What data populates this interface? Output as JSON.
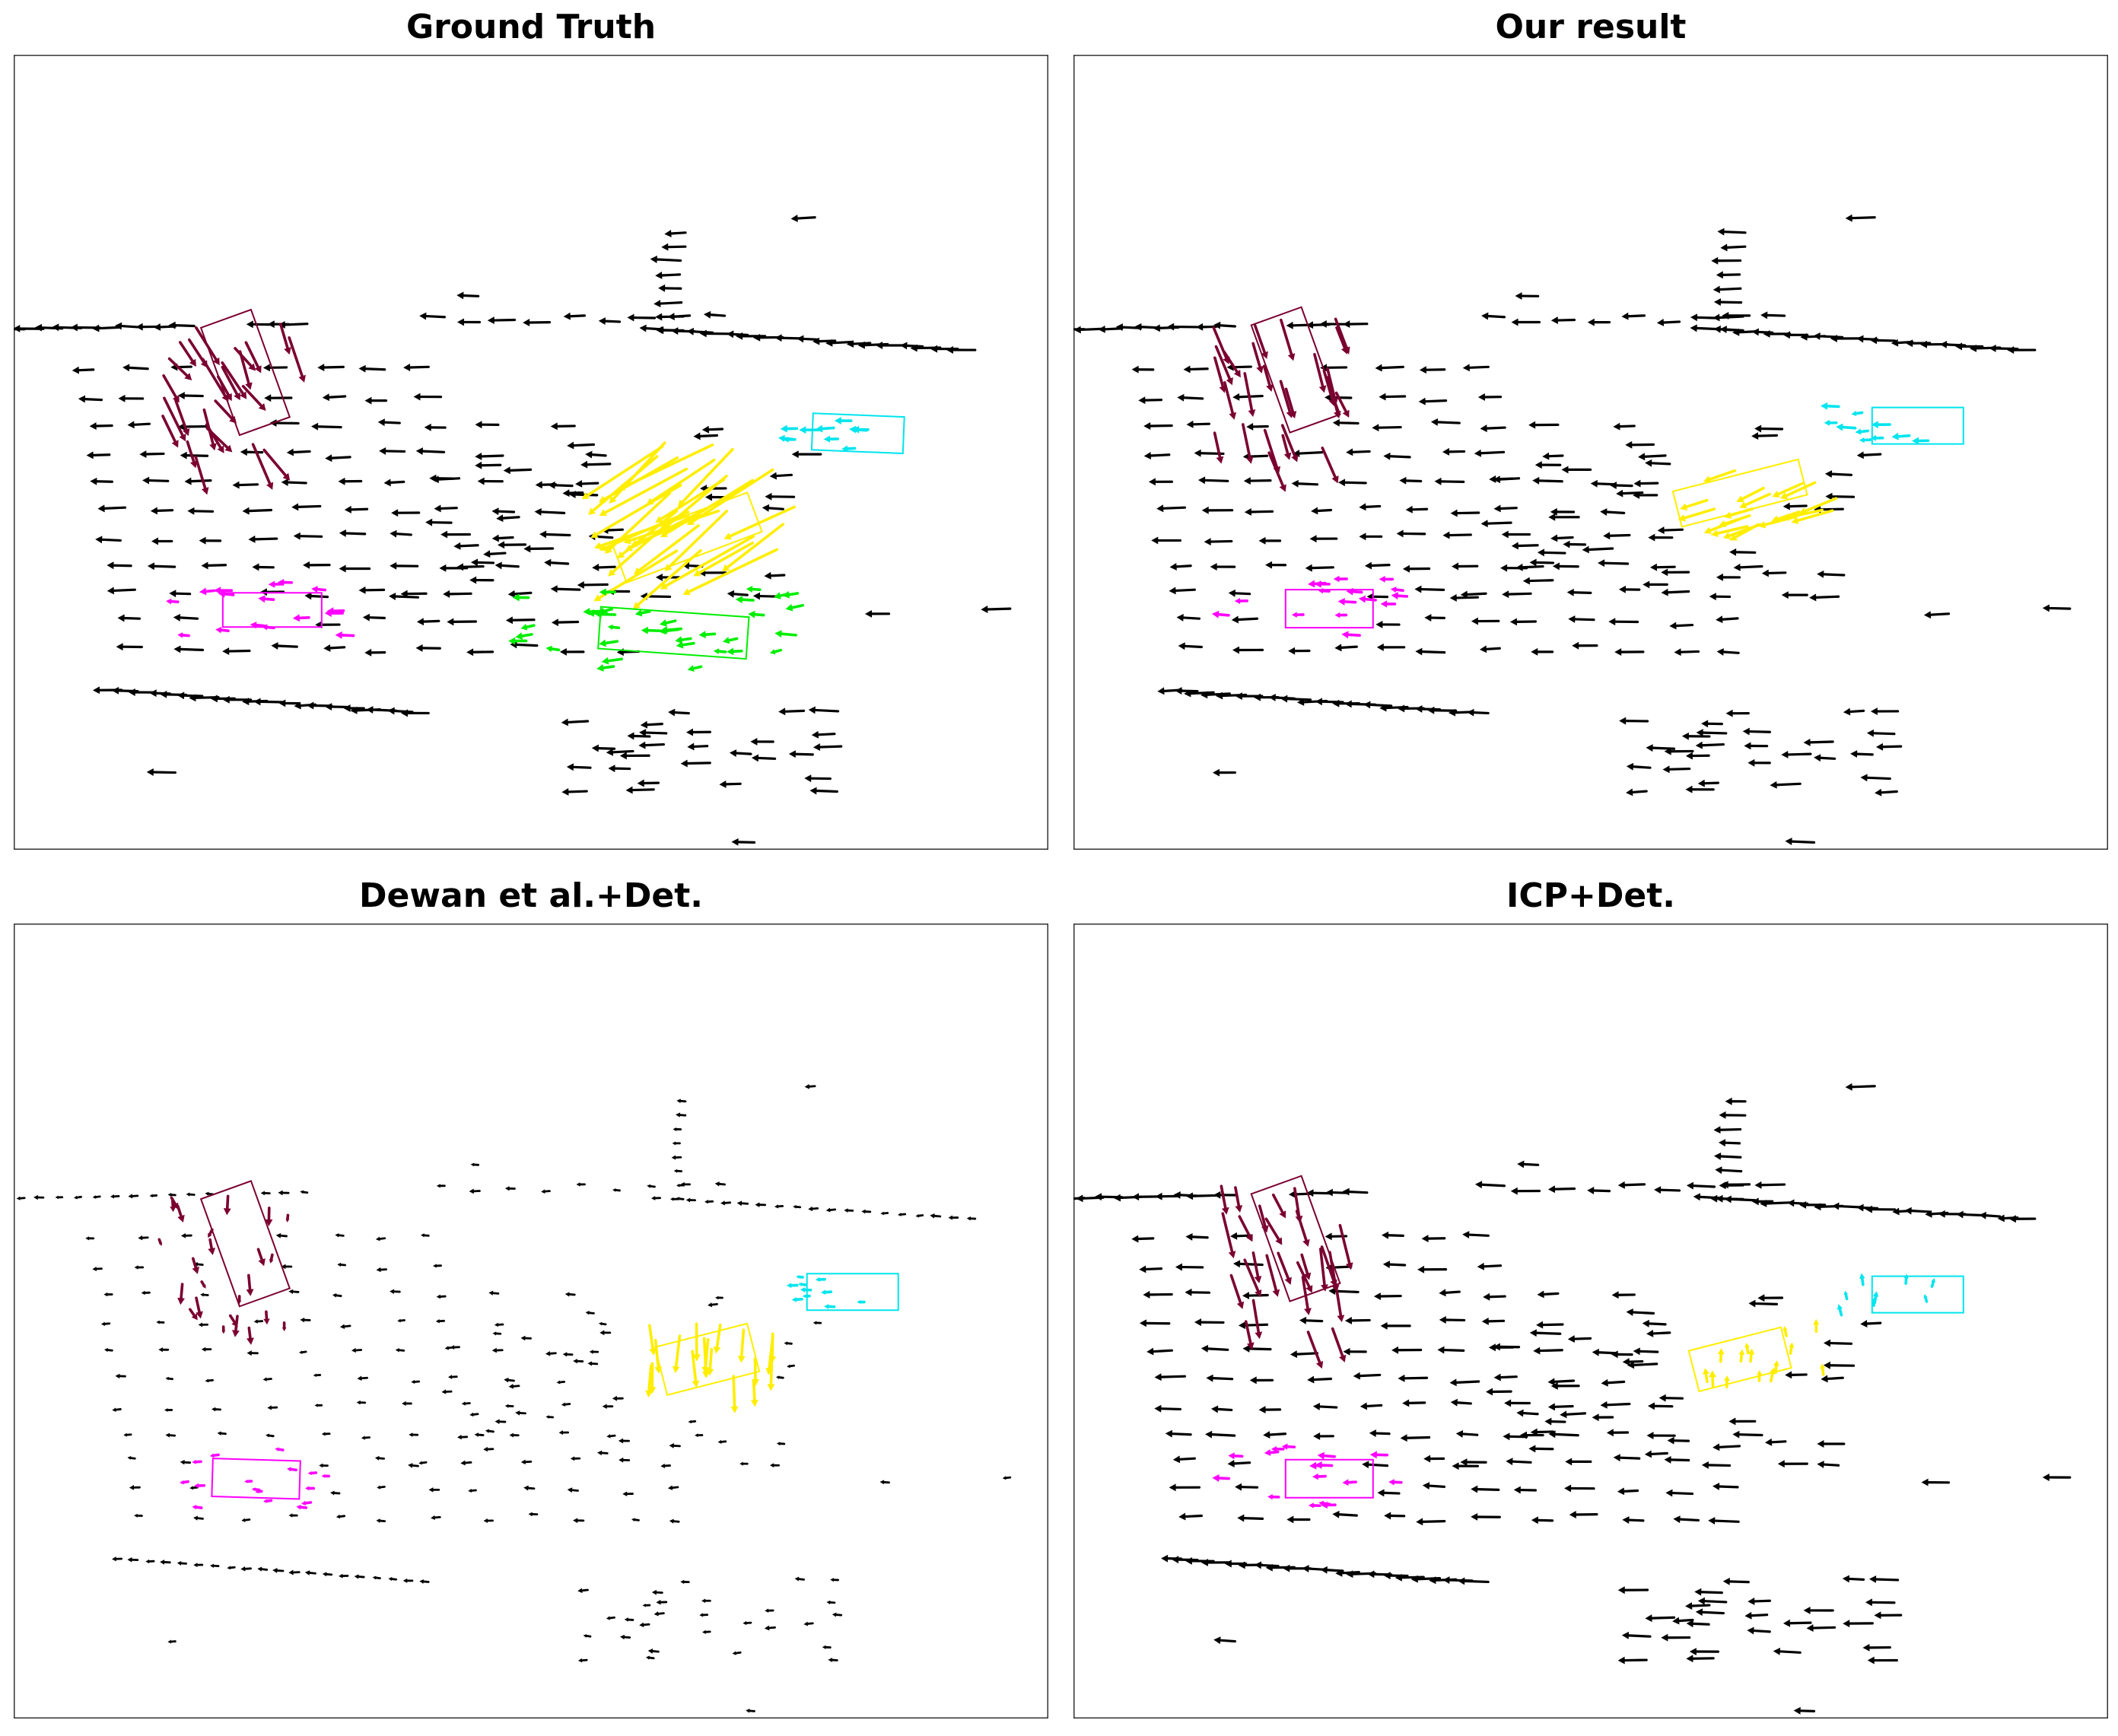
{
  "panels": [
    {
      "title": "Ground Truth",
      "boxes": [
        {
          "name": "maroon",
          "color": "#7a0030"
        },
        {
          "name": "cyan",
          "color": "#00e5ee"
        },
        {
          "name": "yellow",
          "color": "#ffee00"
        },
        {
          "name": "magenta",
          "color": "#ff00ff"
        },
        {
          "name": "green",
          "color": "#00ee00"
        }
      ]
    },
    {
      "title": "Our result",
      "boxes": [
        {
          "name": "maroon",
          "color": "#7a0030"
        },
        {
          "name": "cyan",
          "color": "#00e5ee"
        },
        {
          "name": "yellow",
          "color": "#ffee00"
        },
        {
          "name": "magenta",
          "color": "#ff00ff"
        }
      ]
    },
    {
      "title": "Dewan et al.+Det.",
      "boxes": [
        {
          "name": "maroon",
          "color": "#7a0030"
        },
        {
          "name": "cyan",
          "color": "#00e5ee"
        },
        {
          "name": "yellow",
          "color": "#ffee00"
        },
        {
          "name": "magenta",
          "color": "#ff00ff"
        }
      ]
    },
    {
      "title": "ICP+Det.",
      "boxes": [
        {
          "name": "maroon",
          "color": "#7a0030"
        },
        {
          "name": "cyan",
          "color": "#00e5ee"
        },
        {
          "name": "yellow",
          "color": "#ffee00"
        },
        {
          "name": "magenta",
          "color": "#ff00ff"
        }
      ]
    }
  ],
  "colors": {
    "background_flow": "#000000",
    "frame": "#333333"
  }
}
